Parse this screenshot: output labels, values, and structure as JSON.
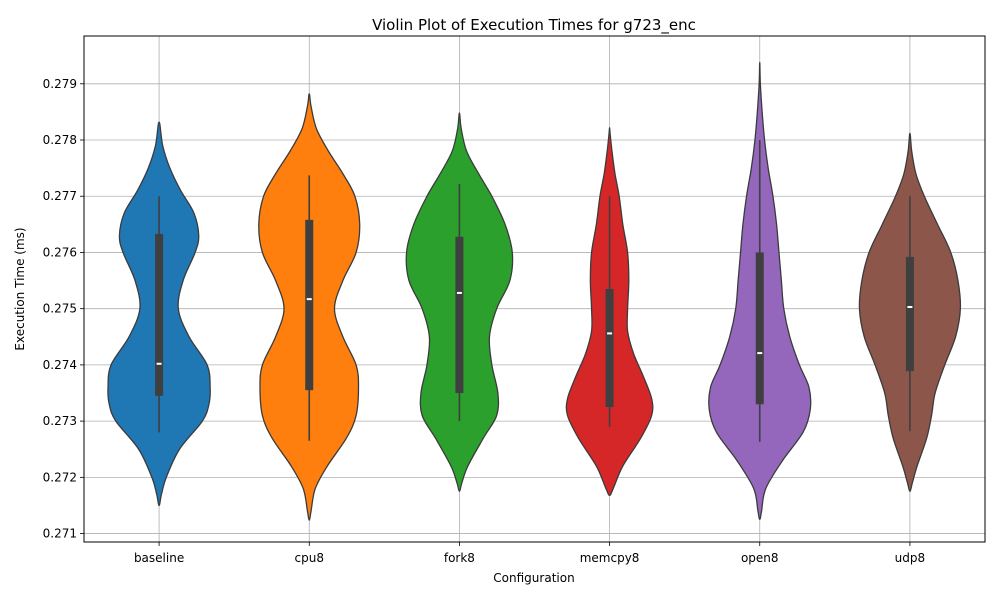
{
  "chart_data": {
    "type": "violin",
    "title": "Violin Plot of Execution Times for g723_enc",
    "xlabel": "Configuration",
    "ylabel": "Execution Time (ms)",
    "ylim": [
      0.27085,
      0.27985
    ],
    "yticks": [
      0.271,
      0.272,
      0.273,
      0.274,
      0.275,
      0.276,
      0.277,
      0.278,
      0.279
    ],
    "grid": true,
    "categories": [
      "baseline",
      "cpu8",
      "fork8",
      "memcpy8",
      "open8",
      "udp8"
    ],
    "colors": [
      "#1f77b4",
      "#ff7f0e",
      "#2ca02c",
      "#d62728",
      "#9467bd",
      "#8c564b"
    ],
    "series": [
      {
        "name": "baseline",
        "violin": {
          "y": [
            0.2715,
            0.2717,
            0.272,
            0.2725,
            0.273,
            0.2733,
            0.2736,
            0.274,
            0.2745,
            0.275,
            0.2755,
            0.276,
            0.2763,
            0.2767,
            0.2771,
            0.2775,
            0.2779,
            0.27832
          ],
          "width": [
            0.0,
            0.04,
            0.12,
            0.34,
            0.72,
            0.83,
            0.85,
            0.8,
            0.5,
            0.32,
            0.4,
            0.6,
            0.66,
            0.58,
            0.36,
            0.18,
            0.06,
            0.0
          ]
        },
        "whisker_low": 0.2728,
        "q1": 0.27345,
        "median": 0.27402,
        "q3": 0.27633,
        "whisker_high": 0.277
      },
      {
        "name": "cpu8",
        "violin": {
          "y": [
            0.27124,
            0.2714,
            0.2718,
            0.2722,
            0.2727,
            0.2731,
            0.2736,
            0.274,
            0.2745,
            0.275,
            0.2755,
            0.276,
            0.2765,
            0.277,
            0.2774,
            0.2778,
            0.2782,
            0.2786,
            0.27882
          ],
          "width": [
            0.0,
            0.03,
            0.1,
            0.3,
            0.62,
            0.78,
            0.82,
            0.78,
            0.56,
            0.42,
            0.56,
            0.78,
            0.84,
            0.76,
            0.56,
            0.32,
            0.12,
            0.03,
            0.0
          ]
        },
        "whisker_low": 0.27265,
        "q1": 0.27355,
        "median": 0.27517,
        "q3": 0.27658,
        "whisker_high": 0.27737
      },
      {
        "name": "fork8",
        "violin": {
          "y": [
            0.27175,
            0.2719,
            0.2722,
            0.2727,
            0.2731,
            0.2735,
            0.274,
            0.2745,
            0.275,
            0.2755,
            0.276,
            0.2765,
            0.277,
            0.2774,
            0.2778,
            0.2782,
            0.27848
          ],
          "width": [
            0.0,
            0.04,
            0.14,
            0.4,
            0.62,
            0.64,
            0.54,
            0.5,
            0.62,
            0.84,
            0.88,
            0.76,
            0.54,
            0.32,
            0.12,
            0.03,
            0.0
          ]
        },
        "whisker_low": 0.273,
        "q1": 0.2735,
        "median": 0.27528,
        "q3": 0.27628,
        "whisker_high": 0.27722
      },
      {
        "name": "memcpy8",
        "violin": {
          "y": [
            0.27168,
            0.2718,
            0.2722,
            0.2727,
            0.2731,
            0.2734,
            0.2738,
            0.2742,
            0.2746,
            0.275,
            0.2755,
            0.276,
            0.2765,
            0.277,
            0.2774,
            0.2778,
            0.2781,
            0.27822
          ],
          "width": [
            0.0,
            0.06,
            0.22,
            0.52,
            0.7,
            0.7,
            0.56,
            0.4,
            0.3,
            0.3,
            0.32,
            0.3,
            0.22,
            0.16,
            0.09,
            0.04,
            0.01,
            0.0
          ]
        },
        "whisker_low": 0.2729,
        "q1": 0.27325,
        "median": 0.27456,
        "q3": 0.27535,
        "whisker_high": 0.277
      },
      {
        "name": "open8",
        "violin": {
          "y": [
            0.27125,
            0.2714,
            0.2718,
            0.2723,
            0.2728,
            0.2732,
            0.2736,
            0.274,
            0.2745,
            0.275,
            0.2755,
            0.276,
            0.2765,
            0.277,
            0.2775,
            0.278,
            0.2785,
            0.279,
            0.27938
          ],
          "width": [
            0.0,
            0.03,
            0.1,
            0.38,
            0.72,
            0.84,
            0.82,
            0.66,
            0.5,
            0.4,
            0.36,
            0.32,
            0.28,
            0.22,
            0.14,
            0.08,
            0.04,
            0.01,
            0.0
          ]
        },
        "whisker_low": 0.27263,
        "q1": 0.2733,
        "median": 0.27421,
        "q3": 0.276,
        "whisker_high": 0.278
      },
      {
        "name": "udp8",
        "violin": {
          "y": [
            0.27175,
            0.2719,
            0.2722,
            0.2727,
            0.2731,
            0.2735,
            0.274,
            0.2745,
            0.275,
            0.2755,
            0.276,
            0.2765,
            0.277,
            0.2774,
            0.2778,
            0.27812
          ],
          "width": [
            0.0,
            0.04,
            0.12,
            0.28,
            0.36,
            0.42,
            0.58,
            0.76,
            0.84,
            0.8,
            0.68,
            0.46,
            0.24,
            0.1,
            0.03,
            0.0
          ]
        },
        "whisker_low": 0.27282,
        "q1": 0.27389,
        "median": 0.27503,
        "q3": 0.27592,
        "whisker_high": 0.277
      }
    ]
  }
}
